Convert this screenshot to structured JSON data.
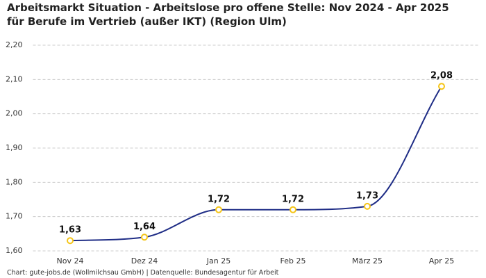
{
  "chart_data": {
    "type": "line",
    "title": "Arbeitsmarkt Situation - Arbeitslose pro offene Stelle: Nov 2024 - Apr 2025 für Berufe im Vertrieb (außer IKT) (Region Ulm)",
    "source": "Chart: gute-jobs.de (Wollmilchsau GmbH) | Datenquelle: Bundesagentur für Arbeit",
    "categories": [
      "Nov 24",
      "Dez 24",
      "Jan 25",
      "Feb 25",
      "März 25",
      "Apr 25"
    ],
    "series": [
      {
        "name": "Arbeitslose pro offene Stelle",
        "color": "#1f2d86",
        "marker_color": "#f5c518",
        "values": [
          1.63,
          1.64,
          1.72,
          1.72,
          1.73,
          2.08
        ],
        "value_labels": [
          "1,63",
          "1,64",
          "1,72",
          "1,72",
          "1,73",
          "2,08"
        ]
      }
    ],
    "ylim": [
      1.6,
      2.2
    ],
    "yticks": [
      {
        "value": 1.6,
        "label": "1,60"
      },
      {
        "value": 1.7,
        "label": "1,70"
      },
      {
        "value": 1.8,
        "label": "1,80"
      },
      {
        "value": 1.9,
        "label": "1,90"
      },
      {
        "value": 2.0,
        "label": "2,00"
      },
      {
        "value": 2.1,
        "label": "2,10"
      },
      {
        "value": 2.2,
        "label": "2,20"
      }
    ],
    "grid": true,
    "smooth": true
  }
}
